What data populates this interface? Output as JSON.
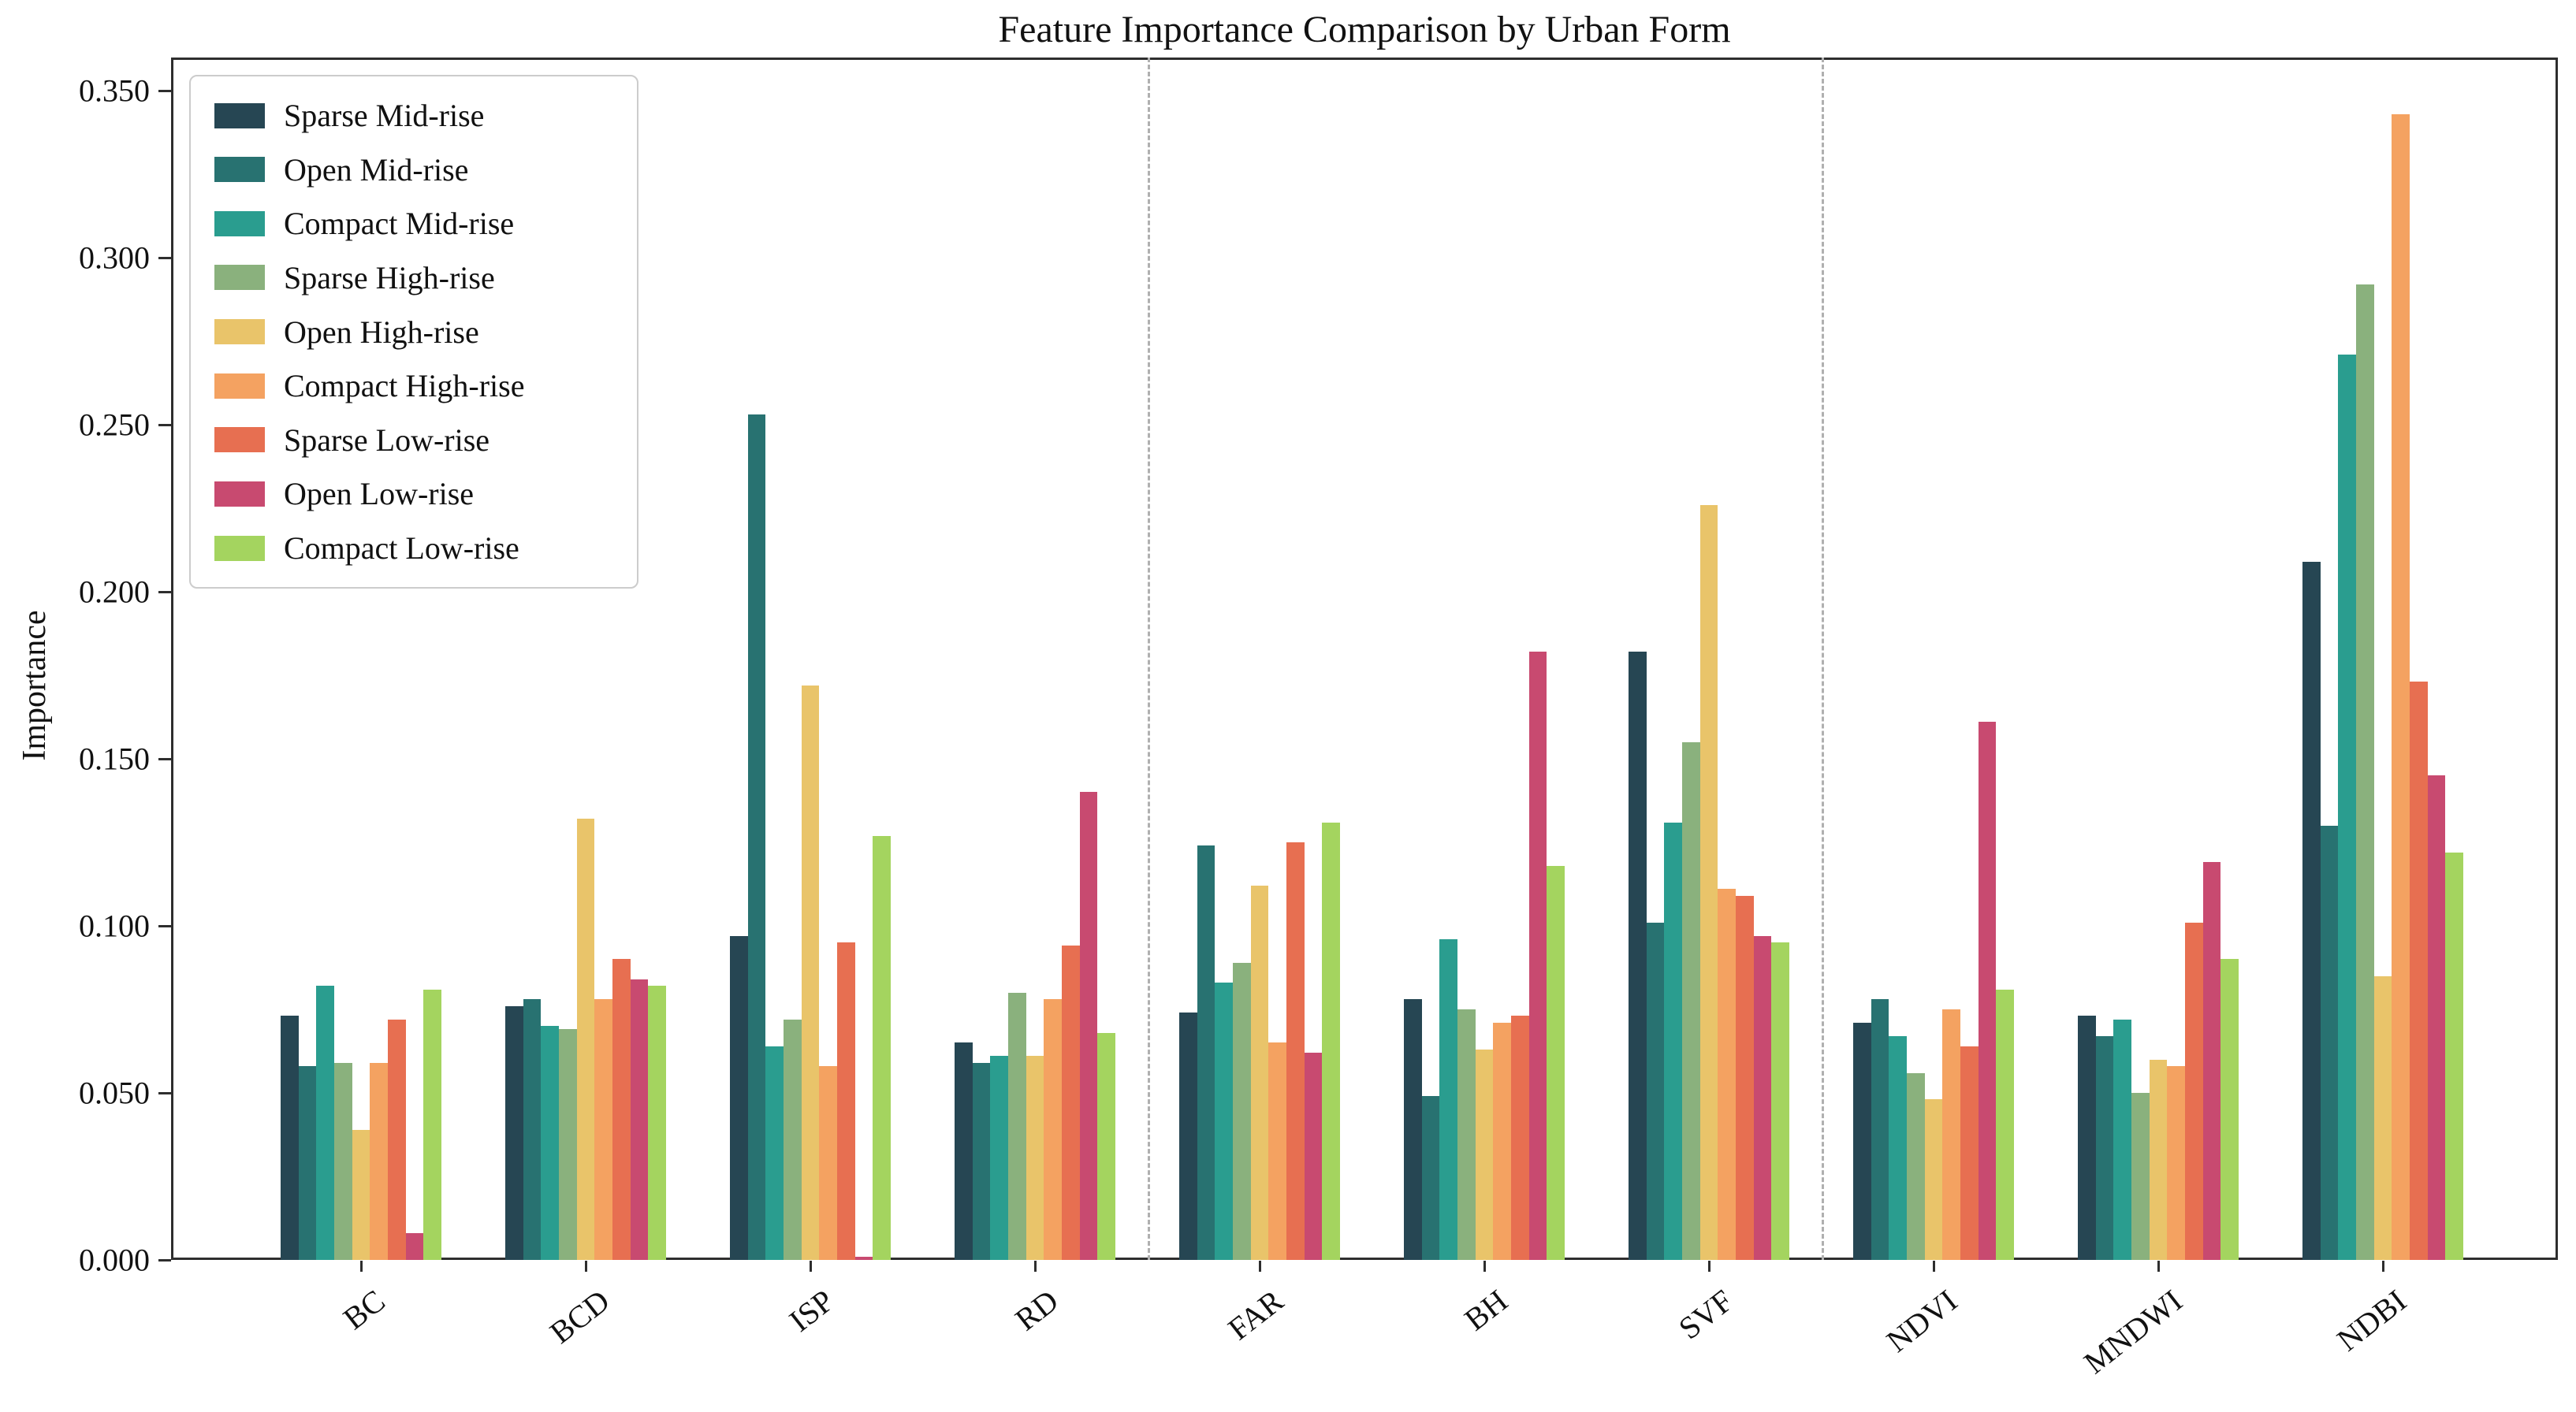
{
  "chart_data": {
    "type": "bar",
    "title": "Feature Importance Comparison by Urban Form",
    "xlabel": "",
    "ylabel": "Importance",
    "categories": [
      "BC",
      "BCD",
      "ISP",
      "RD",
      "FAR",
      "BH",
      "SVF",
      "NDVI",
      "MNDWI",
      "NDBI"
    ],
    "series": [
      {
        "name": "Sparse Mid-rise",
        "color": "#264653",
        "values": [
          0.073,
          0.076,
          0.097,
          0.065,
          0.074,
          0.078,
          0.182,
          0.071,
          0.073,
          0.209
        ]
      },
      {
        "name": "Open Mid-rise",
        "color": "#287271",
        "values": [
          0.058,
          0.078,
          0.253,
          0.059,
          0.124,
          0.049,
          0.101,
          0.078,
          0.067,
          0.13
        ]
      },
      {
        "name": "Compact Mid-rise",
        "color": "#2a9d8f",
        "values": [
          0.082,
          0.07,
          0.064,
          0.061,
          0.083,
          0.096,
          0.131,
          0.067,
          0.072,
          0.271
        ]
      },
      {
        "name": "Sparse High-rise",
        "color": "#8ab17d",
        "values": [
          0.059,
          0.069,
          0.072,
          0.08,
          0.089,
          0.075,
          0.155,
          0.056,
          0.05,
          0.292
        ]
      },
      {
        "name": "Open High-rise",
        "color": "#e9c46a",
        "values": [
          0.039,
          0.132,
          0.172,
          0.061,
          0.112,
          0.063,
          0.226,
          0.048,
          0.06,
          0.085
        ]
      },
      {
        "name": "Compact High-rise",
        "color": "#f4a261",
        "values": [
          0.059,
          0.078,
          0.058,
          0.078,
          0.065,
          0.071,
          0.111,
          0.075,
          0.058,
          0.343
        ]
      },
      {
        "name": "Sparse Low-rise",
        "color": "#e76f51",
        "values": [
          0.072,
          0.09,
          0.095,
          0.094,
          0.125,
          0.073,
          0.109,
          0.064,
          0.101,
          0.173
        ]
      },
      {
        "name": "Open Low-rise",
        "color": "#c84a70",
        "values": [
          0.008,
          0.084,
          0.001,
          0.14,
          0.062,
          0.182,
          0.097,
          0.161,
          0.119,
          0.145
        ]
      },
      {
        "name": "Compact Low-rise",
        "color": "#a4d45f",
        "values": [
          0.081,
          0.082,
          0.127,
          0.068,
          0.131,
          0.118,
          0.095,
          0.081,
          0.09,
          0.122
        ]
      }
    ],
    "ylim": [
      0.0,
      0.35
    ],
    "ytick_step": 0.05,
    "ytick_format_decimals": 3,
    "ytick_labels": [
      "0.000",
      "0.050",
      "0.100",
      "0.150",
      "0.200",
      "0.250",
      "0.300",
      "0.350"
    ],
    "grid": false,
    "legend_position": "upper-left",
    "xtick_rotation_deg": 38,
    "separators_after_categories": [
      "RD",
      "SVF"
    ],
    "separator_style": "dashed-gray-vertical"
  }
}
